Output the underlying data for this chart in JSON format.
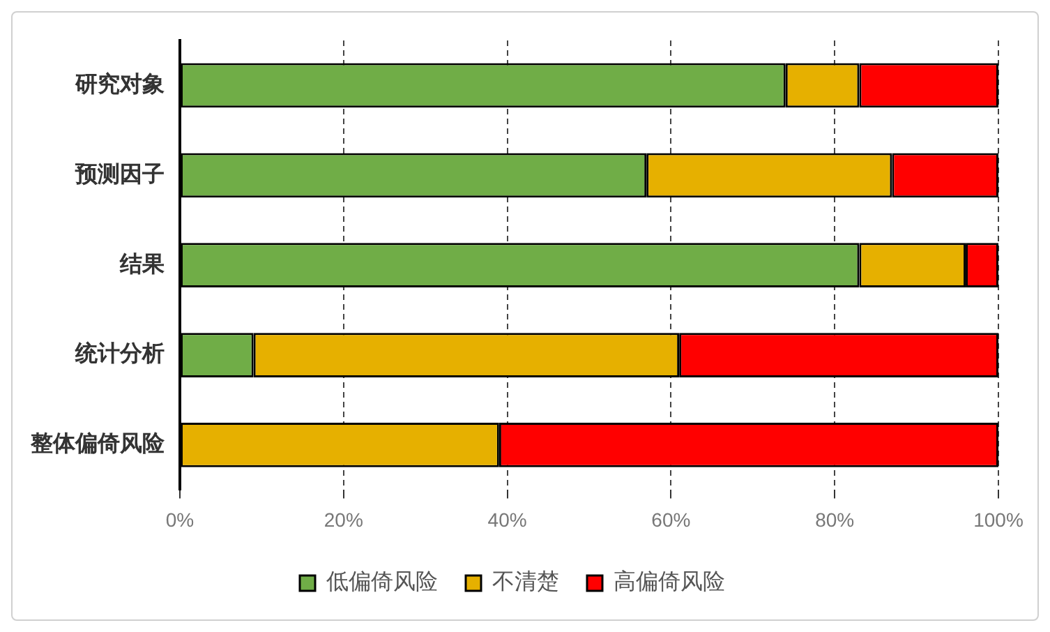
{
  "chart_data": {
    "type": "bar",
    "orientation": "horizontal",
    "stacked": true,
    "categories": [
      "研究对象",
      "预测因子",
      "结果",
      "统计分析",
      "整体偏倚风险"
    ],
    "series": [
      {
        "name": "低偏倚风险",
        "color": "#70ad47",
        "values": [
          74,
          57,
          83,
          9,
          0
        ]
      },
      {
        "name": "不清楚",
        "color": "#e6b000",
        "values": [
          9,
          30,
          13,
          52,
          39
        ]
      },
      {
        "name": "高偏倚风险",
        "color": "#ff0000",
        "values": [
          17,
          13,
          4,
          39,
          61
        ]
      }
    ],
    "xlim": [
      0,
      100
    ],
    "xticks": [
      {
        "value": 0,
        "label": "0%"
      },
      {
        "value": 20,
        "label": "20%"
      },
      {
        "value": 40,
        "label": "40%"
      },
      {
        "value": 60,
        "label": "60%"
      },
      {
        "value": 80,
        "label": "80%"
      },
      {
        "value": 100,
        "label": "100%"
      }
    ],
    "grid": "x",
    "legend": "bottom"
  }
}
